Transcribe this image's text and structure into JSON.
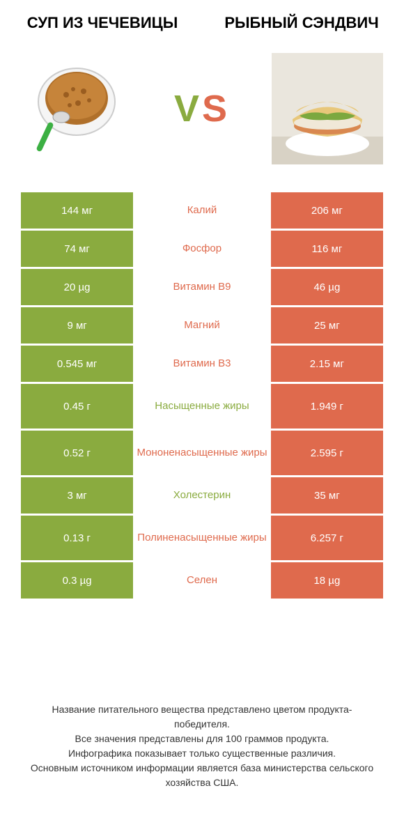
{
  "header": {
    "left_title": "СУП ИЗ ЧЕЧЕВИЦЫ",
    "right_title": "РЫБНЫЙ СЭНДВИЧ",
    "vs_v": "V",
    "vs_s": "S"
  },
  "colors": {
    "left": "#8aab3f",
    "right": "#df6a4d",
    "background": "#ffffff",
    "text": "#333333"
  },
  "rows": [
    {
      "left": "144 мг",
      "label": "Калий",
      "right": "206 мг",
      "winner": "right",
      "tall": false
    },
    {
      "left": "74 мг",
      "label": "Фосфор",
      "right": "116 мг",
      "winner": "right",
      "tall": false
    },
    {
      "left": "20 µg",
      "label": "Витамин B9",
      "right": "46 µg",
      "winner": "right",
      "tall": false
    },
    {
      "left": "9 мг",
      "label": "Магний",
      "right": "25 мг",
      "winner": "right",
      "tall": false
    },
    {
      "left": "0.545 мг",
      "label": "Витамин B3",
      "right": "2.15 мг",
      "winner": "right",
      "tall": false
    },
    {
      "left": "0.45 г",
      "label": "Насыщенные жиры",
      "right": "1.949 г",
      "winner": "left",
      "tall": true
    },
    {
      "left": "0.52 г",
      "label": "Мононенасыщенные жиры",
      "right": "2.595 г",
      "winner": "right",
      "tall": true
    },
    {
      "left": "3 мг",
      "label": "Холестерин",
      "right": "35 мг",
      "winner": "left",
      "tall": false
    },
    {
      "left": "0.13 г",
      "label": "Полиненасыщенные жиры",
      "right": "6.257 г",
      "winner": "right",
      "tall": true
    },
    {
      "left": "0.3 µg",
      "label": "Селен",
      "right": "18 µg",
      "winner": "right",
      "tall": false
    }
  ],
  "footer": {
    "line1": "Название питательного вещества представлено цветом продукта-победителя.",
    "line2": "Все значения представлены для 100 граммов продукта.",
    "line3": "Инфографика показывает только существенные различия.",
    "line4": "Основным источником информации является база министерства сельского хозяйства США."
  }
}
